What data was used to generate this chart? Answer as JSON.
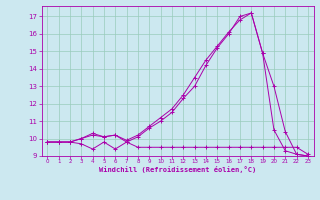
{
  "title": "",
  "xlabel": "Windchill (Refroidissement éolien,°C)",
  "ylabel": "",
  "bg_color": "#cce8f0",
  "grid_color": "#99ccbb",
  "line_color": "#aa00aa",
  "xlim": [
    -0.5,
    23.5
  ],
  "ylim": [
    9.0,
    17.6
  ],
  "xticks": [
    0,
    1,
    2,
    3,
    4,
    5,
    6,
    7,
    8,
    9,
    10,
    11,
    12,
    13,
    14,
    15,
    16,
    17,
    18,
    19,
    20,
    21,
    22,
    23
  ],
  "yticks": [
    9,
    10,
    11,
    12,
    13,
    14,
    15,
    16,
    17
  ],
  "series1_x": [
    0,
    1,
    2,
    3,
    4,
    5,
    6,
    7,
    8,
    9,
    10,
    11,
    12,
    13,
    14,
    15,
    16,
    17,
    18,
    19,
    20,
    21,
    22,
    23
  ],
  "series1_y": [
    9.8,
    9.8,
    9.8,
    9.7,
    9.4,
    9.8,
    9.4,
    9.8,
    9.5,
    9.5,
    9.5,
    9.5,
    9.5,
    9.5,
    9.5,
    9.5,
    9.5,
    9.5,
    9.5,
    9.5,
    9.5,
    9.5,
    9.5,
    9.1
  ],
  "series2_x": [
    0,
    1,
    2,
    3,
    4,
    5,
    6,
    7,
    8,
    9,
    10,
    11,
    12,
    13,
    14,
    15,
    16,
    17,
    18,
    19,
    20,
    21,
    22,
    23
  ],
  "series2_y": [
    9.8,
    9.8,
    9.8,
    10.0,
    10.2,
    10.1,
    10.2,
    9.8,
    10.1,
    10.6,
    11.0,
    11.5,
    12.3,
    13.0,
    14.2,
    15.2,
    16.0,
    17.0,
    17.2,
    14.9,
    13.0,
    10.4,
    9.1,
    9.0
  ],
  "series3_x": [
    0,
    1,
    2,
    3,
    4,
    5,
    6,
    7,
    8,
    9,
    10,
    11,
    12,
    13,
    14,
    15,
    16,
    17,
    18,
    19,
    20,
    21,
    22,
    23
  ],
  "series3_y": [
    9.8,
    9.8,
    9.8,
    10.0,
    10.3,
    10.1,
    10.2,
    9.9,
    10.2,
    10.7,
    11.2,
    11.7,
    12.5,
    13.5,
    14.5,
    15.3,
    16.1,
    16.8,
    17.2,
    14.9,
    10.5,
    9.3,
    9.1,
    9.0
  ]
}
